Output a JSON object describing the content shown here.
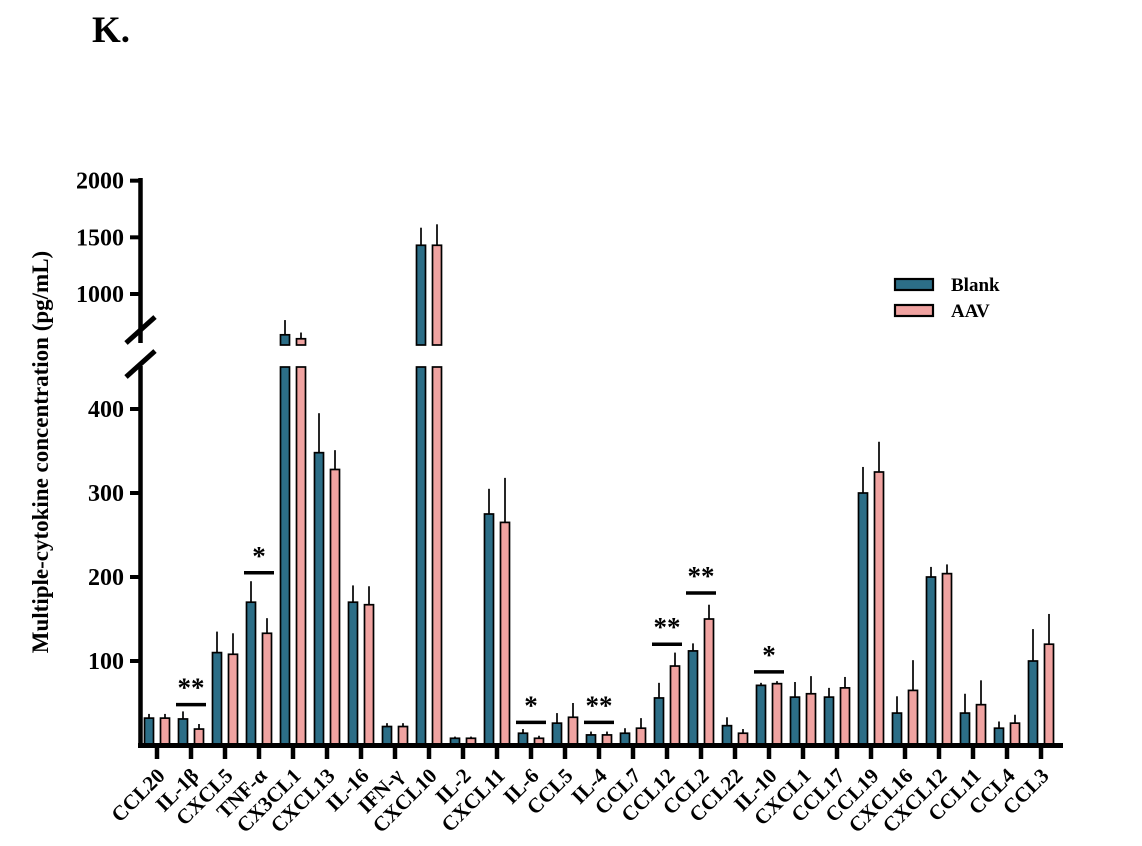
{
  "panel_label": "K.",
  "chart_data": {
    "type": "bar",
    "title": "",
    "xlabel": "",
    "ylabel": "Multiple-cytokine concentration (pg/mL)",
    "grid": false,
    "legend_position": "right-inside",
    "categories": [
      "CCL20",
      "IL-1β",
      "CXCL5",
      "TNF-α",
      "CX3CL1",
      "CXCL13",
      "IL-16",
      "IFN-γ",
      "CXCL10",
      "IL-2",
      "CXCL11",
      "IL-6",
      "CCL5",
      "IL-4",
      "CCL7",
      "CCL12",
      "CCL2",
      "CCL22",
      "IL-10",
      "CXCL1",
      "CCL17",
      "CCL19",
      "CXCL16",
      "CXCL12",
      "CCL11",
      "CCL4",
      "CCL3"
    ],
    "series": [
      {
        "name": "Blank",
        "color": "#2C6E87",
        "values": [
          32,
          31,
          110,
          170,
          640,
          348,
          170,
          22,
          1430,
          8,
          275,
          14,
          26,
          12,
          14,
          56,
          112,
          23,
          71,
          57,
          57,
          300,
          38,
          200,
          38,
          20,
          100
        ],
        "errors": [
          5,
          9,
          25,
          25,
          130,
          47,
          20,
          4,
          155,
          2,
          30,
          5,
          12,
          4,
          6,
          18,
          9,
          10,
          3,
          18,
          11,
          31,
          20,
          12,
          23,
          8,
          38
        ]
      },
      {
        "name": "AAV",
        "color": "#F0A3A1",
        "values": [
          32,
          19,
          108,
          133,
          605,
          328,
          167,
          22,
          1430,
          8,
          265,
          8,
          33,
          12,
          20,
          94,
          150,
          14,
          73,
          61,
          68,
          325,
          65,
          204,
          48,
          26,
          120
        ],
        "errors": [
          5,
          6,
          25,
          18,
          55,
          23,
          22,
          4,
          185,
          2,
          53,
          3,
          17,
          4,
          12,
          16,
          17,
          5,
          3,
          21,
          13,
          36,
          36,
          11,
          29,
          10,
          36
        ]
      }
    ],
    "significance": [
      {
        "category": "IL-1β",
        "label": "**",
        "line_value": 48
      },
      {
        "category": "TNF-α",
        "label": "*",
        "line_value": 205
      },
      {
        "category": "IL-6",
        "label": "*",
        "line_value": 27
      },
      {
        "category": "IL-4",
        "label": "**",
        "line_value": 27
      },
      {
        "category": "CCL12",
        "label": "**",
        "line_value": 120
      },
      {
        "category": "CCL2",
        "label": "**",
        "line_value": 181
      },
      {
        "category": "IL-10",
        "label": "*",
        "line_value": 87
      }
    ],
    "y_axis": {
      "lower_ticks": [
        100,
        200,
        300,
        400
      ],
      "upper_ticks": [
        1000,
        1500,
        2000
      ],
      "break": {
        "lower_max": 450,
        "upper_min": 550
      },
      "ylim": [
        0,
        2050
      ]
    },
    "axis_color": "#000000"
  }
}
